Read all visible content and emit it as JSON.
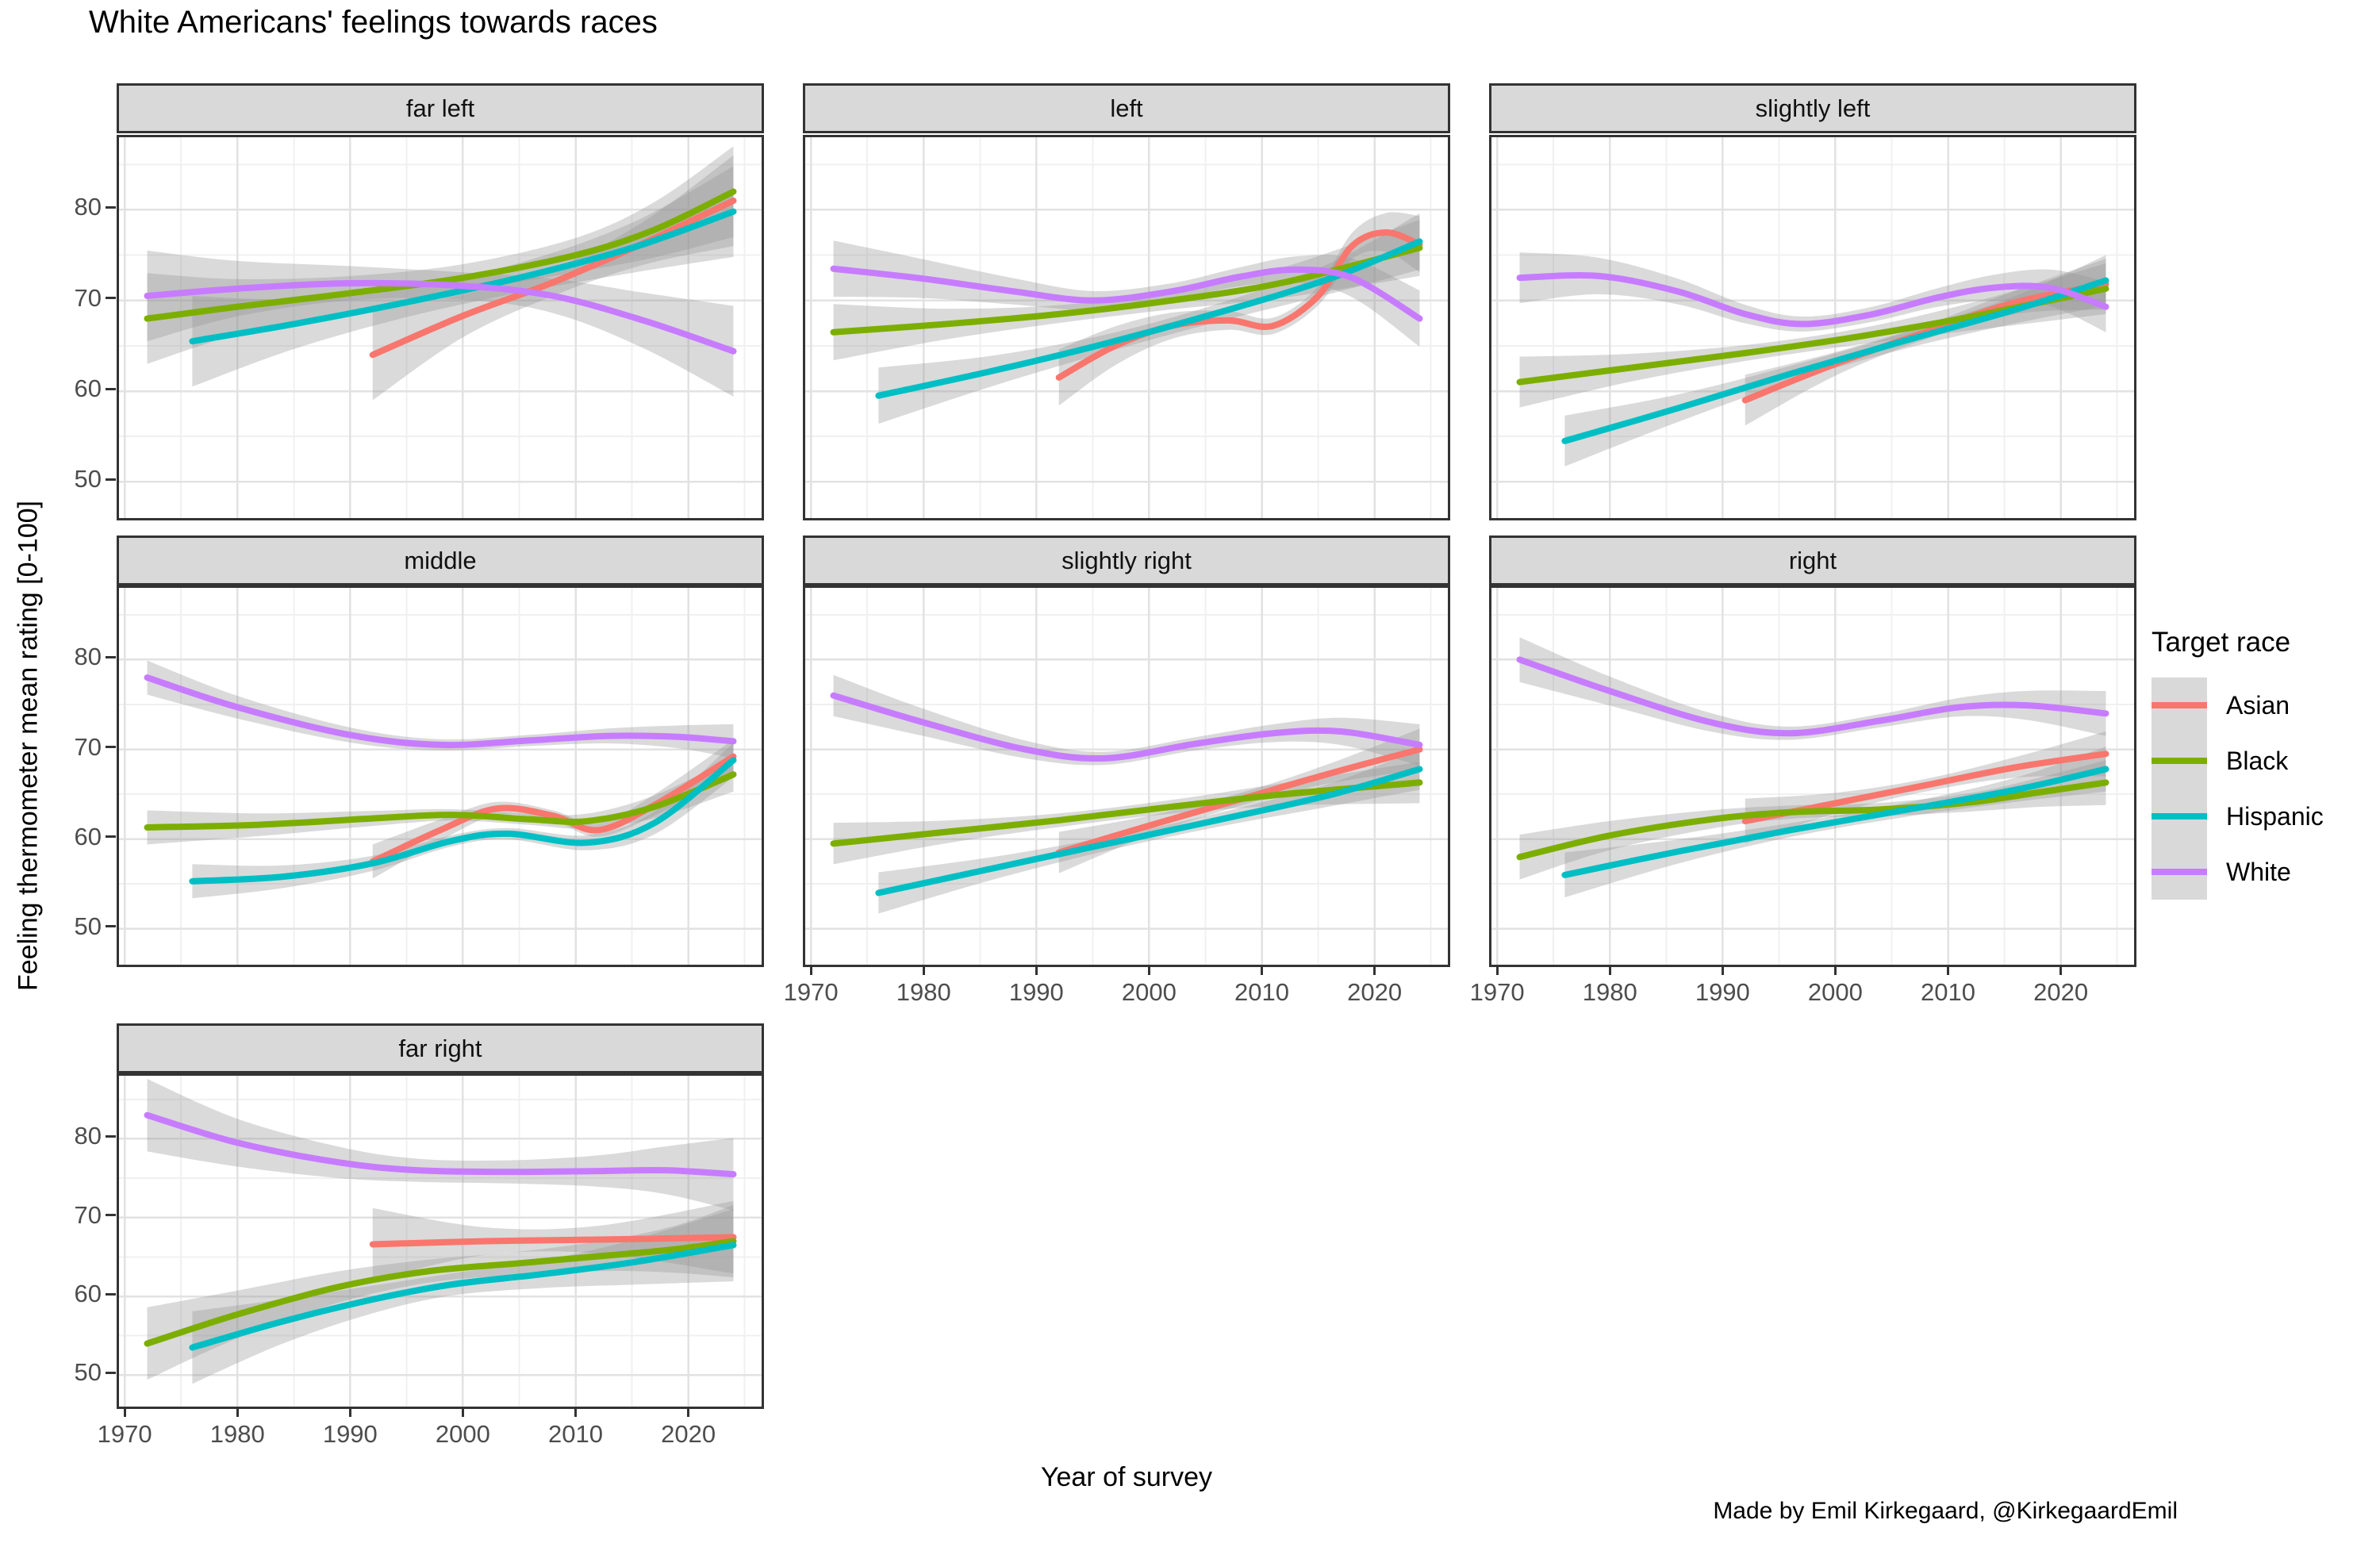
{
  "title": "White Americans' feelings towards races",
  "caption": "Made by Emil Kirkegaard, @KirkegaardEmil",
  "axes": {
    "x_title": "Year of survey",
    "y_title": "Feeling thermometer mean rating [0-100]",
    "x_ticks": [
      "1970",
      "1980",
      "1990",
      "2000",
      "2010",
      "2020"
    ],
    "x_tick_years": [
      1970,
      1980,
      1990,
      2000,
      2010,
      2020
    ],
    "y_ticks": [
      "50",
      "60",
      "70",
      "80"
    ],
    "y_tick_values": [
      50,
      60,
      70,
      80
    ]
  },
  "legend": {
    "title": "Target race",
    "items": [
      {
        "label": "Asian",
        "color": "#F8766D"
      },
      {
        "label": "Black",
        "color": "#7CAE00"
      },
      {
        "label": "Hispanic",
        "color": "#00BFC4"
      },
      {
        "label": "White",
        "color": "#C77CFF"
      }
    ]
  },
  "colors": {
    "strip_bg": "#d9d9d9",
    "panel_border": "#333333",
    "grid_major": "#e2e2e2",
    "grid_minor": "#f0f0f0",
    "ribbon": "rgba(150,150,150,0.35)"
  },
  "chart_data": {
    "type": "line",
    "subtype": "loess-smoothed trends with 95% confidence ribbons, faceted by political orientation",
    "title": "White Americans' feelings towards races",
    "xlabel": "Year of survey",
    "ylabel": "Feeling thermometer mean rating [0-100]",
    "x_range": [
      1969.5,
      2026.5
    ],
    "y_range": [
      46,
      88
    ],
    "grid": "on",
    "legend_position": "right",
    "facet_order": [
      "far left",
      "left",
      "slightly left",
      "middle",
      "slightly right",
      "right",
      "far right"
    ],
    "facets": [
      {
        "name": "far left",
        "slug": "far-left",
        "row": 0,
        "col": 0,
        "y_axis": true,
        "x_axis": false,
        "ribbon": [
          1.5,
          3.5
        ],
        "series": [
          {
            "race": "Asian",
            "x": [
              1992,
              2000,
              2008,
              2016,
              2024
            ],
            "y": [
              64,
              68.3,
              72,
              76.3,
              81
            ]
          },
          {
            "race": "Black",
            "x": [
              1972,
              1980,
              1990,
              2000,
              2010,
              2017,
              2024
            ],
            "y": [
              68,
              69.3,
              70.8,
              72.5,
              75,
              77.8,
              82
            ]
          },
          {
            "race": "Hispanic",
            "x": [
              1976,
              1985,
              1995,
              2005,
              2015,
              2024
            ],
            "y": [
              65.5,
              67.4,
              69.8,
              72.5,
              75.8,
              79.8
            ]
          },
          {
            "race": "White",
            "x": [
              1972,
              1980,
              1990,
              2000,
              2008,
              2016,
              2024
            ],
            "y": [
              70.5,
              71.3,
              71.9,
              71.6,
              70.5,
              67.8,
              64.4
            ]
          }
        ]
      },
      {
        "name": "left",
        "slug": "left",
        "row": 0,
        "col": 1,
        "y_axis": false,
        "x_axis": false,
        "ribbon": [
          0.9,
          2.2
        ],
        "series": [
          {
            "race": "Asian",
            "x": [
              1992,
              1997,
              2002,
              2007,
              2011,
              2015,
              2018,
              2021,
              2024
            ],
            "y": [
              61.5,
              65,
              67.2,
              67.8,
              67.2,
              70.5,
              76,
              77.5,
              76.2
            ]
          },
          {
            "race": "Black",
            "x": [
              1972,
              1982,
              1992,
              2002,
              2012,
              2024
            ],
            "y": [
              66.5,
              67.4,
              68.5,
              70,
              72,
              75.8
            ]
          },
          {
            "race": "Hispanic",
            "x": [
              1976,
              1986,
              1996,
              2006,
              2016,
              2024
            ],
            "y": [
              59.5,
              62.2,
              65.2,
              68.6,
              72.4,
              76.5
            ]
          },
          {
            "race": "White",
            "x": [
              1972,
              1980,
              1988,
              1995,
              2002,
              2008,
              2013,
              2018,
              2024
            ],
            "y": [
              73.5,
              72.4,
              71,
              70,
              71,
              72.6,
              73.4,
              72.5,
              68
            ]
          }
        ]
      },
      {
        "name": "slightly left",
        "slug": "slightly-left",
        "row": 0,
        "col": 2,
        "y_axis": false,
        "x_axis": false,
        "ribbon": [
          0.8,
          2.0
        ],
        "series": [
          {
            "race": "Asian",
            "x": [
              1992,
              2000,
              2008,
              2016,
              2024
            ],
            "y": [
              59,
              63,
              66.5,
              69.8,
              71.8
            ]
          },
          {
            "race": "Black",
            "x": [
              1972,
              1982,
              1992,
              2002,
              2012,
              2024
            ],
            "y": [
              61,
              62.6,
              64.2,
              66,
              68.2,
              71.3
            ]
          },
          {
            "race": "Hispanic",
            "x": [
              1976,
              1986,
              1996,
              2006,
              2016,
              2024
            ],
            "y": [
              54.5,
              58.1,
              61.9,
              65.5,
              69,
              72.2
            ]
          },
          {
            "race": "White",
            "x": [
              1972,
              1979,
              1986,
              1992,
              1997,
              2003,
              2009,
              2014,
              2019,
              2024
            ],
            "y": [
              72.5,
              72.7,
              71,
              68.5,
              67.4,
              68.4,
              70.3,
              71.4,
              71.4,
              69.3
            ]
          }
        ]
      },
      {
        "name": "middle",
        "slug": "middle",
        "row": 1,
        "col": 0,
        "y_axis": true,
        "x_axis": false,
        "ribbon": [
          0.6,
          1.3
        ],
        "series": [
          {
            "race": "Asian",
            "x": [
              1992,
              1998,
              2003,
              2008,
              2012,
              2017,
              2024
            ],
            "y": [
              57.5,
              61,
              63.4,
              62.6,
              61,
              63.8,
              69.2
            ]
          },
          {
            "race": "Black",
            "x": [
              1972,
              1982,
              1992,
              1999,
              2006,
              2011,
              2017,
              2024
            ],
            "y": [
              61.3,
              61.6,
              62.3,
              62.7,
              62.2,
              62,
              63.6,
              67.2
            ]
          },
          {
            "race": "Hispanic",
            "x": [
              1976,
              1984,
              1992,
              1999,
              2004,
              2011,
              2017,
              2024
            ],
            "y": [
              55.3,
              55.8,
              57.3,
              59.8,
              60.6,
              59.6,
              61.8,
              68.8
            ]
          },
          {
            "race": "White",
            "x": [
              1972,
              1980,
              1990,
              1998,
              2006,
              2013,
              2019,
              2024
            ],
            "y": [
              78,
              74.7,
              71.6,
              70.5,
              71,
              71.5,
              71.4,
              70.9
            ]
          }
        ]
      },
      {
        "name": "slightly right",
        "slug": "slightly-right",
        "row": 1,
        "col": 1,
        "y_axis": false,
        "x_axis": true,
        "ribbon": [
          0.7,
          1.6
        ],
        "series": [
          {
            "race": "Asian",
            "x": [
              1992,
              2000,
              2008,
              2016,
              2024
            ],
            "y": [
              58.5,
              61.5,
              64.4,
              67.3,
              70
            ]
          },
          {
            "race": "Black",
            "x": [
              1972,
              1982,
              1992,
              2002,
              2012,
              2024
            ],
            "y": [
              59.5,
              60.8,
              62.1,
              63.6,
              65,
              66.3
            ]
          },
          {
            "race": "Hispanic",
            "x": [
              1976,
              1986,
              1996,
              2006,
              2016,
              2024
            ],
            "y": [
              54,
              56.7,
              59.4,
              62.1,
              64.9,
              67.8
            ]
          },
          {
            "race": "White",
            "x": [
              1972,
              1980,
              1989,
              1996,
              2004,
              2011,
              2017,
              2024
            ],
            "y": [
              76,
              73,
              70,
              69,
              70.6,
              71.8,
              72,
              70.5
            ]
          }
        ]
      },
      {
        "name": "right",
        "slug": "right",
        "row": 1,
        "col": 2,
        "y_axis": false,
        "x_axis": true,
        "ribbon": [
          0.7,
          1.8
        ],
        "series": [
          {
            "race": "Asian",
            "x": [
              1992,
              2000,
              2008,
              2016,
              2024
            ],
            "y": [
              62,
              64,
              66,
              68,
              69.5
            ]
          },
          {
            "race": "Black",
            "x": [
              1972,
              1980,
              1989,
              1996,
              2004,
              2012,
              2018,
              2024
            ],
            "y": [
              58,
              60.4,
              62.2,
              63,
              63.3,
              64.1,
              65.2,
              66.3
            ]
          },
          {
            "race": "Hispanic",
            "x": [
              1976,
              1986,
              1996,
              2006,
              2016,
              2024
            ],
            "y": [
              56,
              58.6,
              61,
              63.2,
              65.5,
              67.8
            ]
          },
          {
            "race": "White",
            "x": [
              1972,
              1980,
              1989,
              1996,
              2004,
              2011,
              2017,
              2024
            ],
            "y": [
              80,
              76.5,
              73,
              71.8,
              73.2,
              74.7,
              74.9,
              74
            ]
          }
        ]
      },
      {
        "name": "far right",
        "slug": "far-right",
        "row": 2,
        "col": 0,
        "y_axis": true,
        "x_axis": true,
        "ribbon": [
          1.4,
          3.2
        ],
        "series": [
          {
            "race": "Asian",
            "x": [
              1992,
              2002,
              2012,
              2024
            ],
            "y": [
              66.6,
              67,
              67.2,
              67.5
            ]
          },
          {
            "race": "Black",
            "x": [
              1972,
              1980,
              1989,
              1997,
              2005,
              2013,
              2019,
              2024
            ],
            "y": [
              54,
              57.7,
              61.2,
              63.2,
              64.2,
              65.2,
              66,
              67
            ]
          },
          {
            "race": "Hispanic",
            "x": [
              1976,
              1984,
              1992,
              1999,
              2007,
              2015,
              2024
            ],
            "y": [
              53.5,
              56.8,
              59.6,
              61.5,
              62.8,
              64.3,
              66.5
            ]
          },
          {
            "race": "White",
            "x": [
              1972,
              1980,
              1989,
              1996,
              2004,
              2012,
              2018,
              2024
            ],
            "y": [
              83,
              79.5,
              77,
              76,
              75.8,
              75.9,
              76,
              75.5
            ]
          }
        ]
      }
    ]
  }
}
